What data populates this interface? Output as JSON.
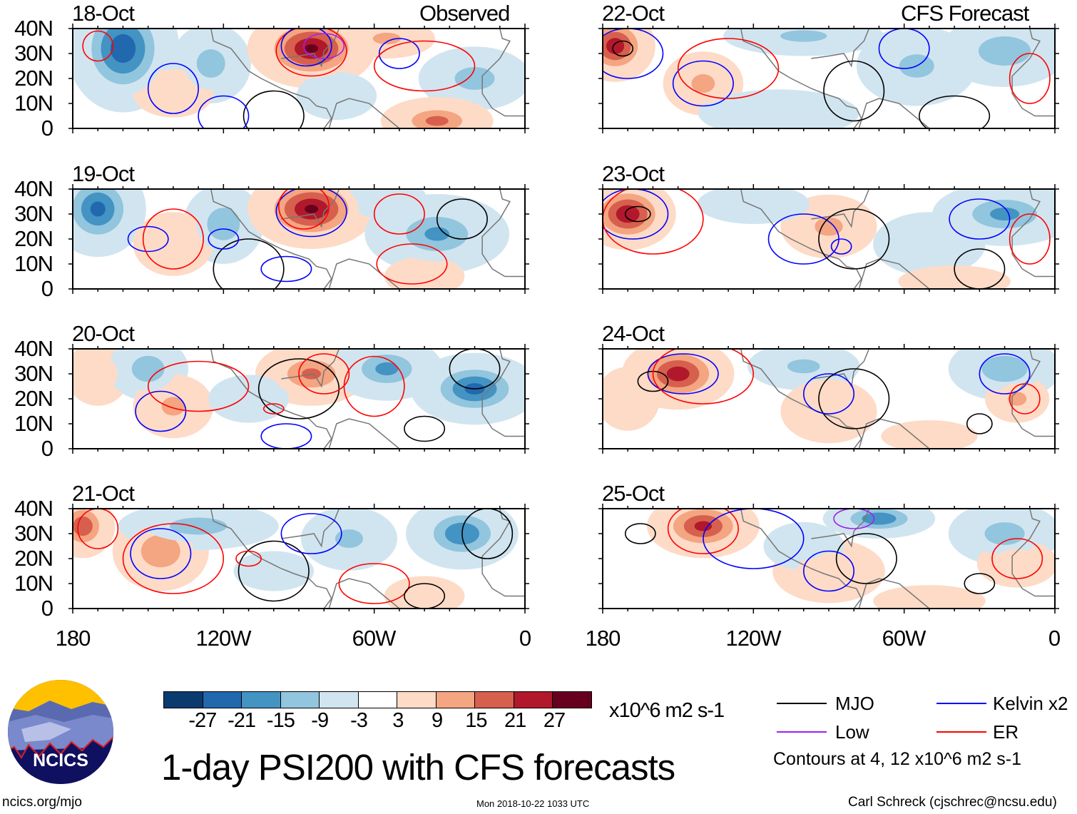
{
  "header": {
    "left_label": "Observed",
    "right_label": "CFS Forecast"
  },
  "title": "1-day PSI200 with CFS forecasts",
  "footer": {
    "url": "ncics.org/mjo",
    "timestamp": "Mon 2018-10-22 1033 UTC",
    "author": "Carl Schreck (cjschrec@ncsu.edu)"
  },
  "logo": {
    "text": "NCICS"
  },
  "colorbar": {
    "unit": "x10^6 m2 s-1",
    "labels": [
      "-27",
      "-21",
      "-15",
      "-9",
      "-3",
      "3",
      "9",
      "15",
      "21",
      "27"
    ],
    "colors": [
      "#0b3a6e",
      "#2268ae",
      "#4393c3",
      "#92c5de",
      "#d1e5f0",
      "#ffffff",
      "#fddbc7",
      "#f4a582",
      "#d6604d",
      "#b2182b",
      "#67001f"
    ]
  },
  "legend": {
    "items": [
      {
        "label": "MJO",
        "color": "#000000"
      },
      {
        "label": "Kelvin x2",
        "color": "#0000ff"
      },
      {
        "label": "Low",
        "color": "#a020f0"
      },
      {
        "label": "ER",
        "color": "#ff0000"
      }
    ],
    "note": "Contours at 4, 12 x10^6 m2 s-1"
  },
  "chart_data": {
    "type": "heatmap",
    "variable": "200-hPa streamfunction anomaly",
    "xlim": [
      -180,
      0
    ],
    "ylim": [
      0,
      40
    ],
    "xticks": [
      "180",
      "120W",
      "60W",
      "0"
    ],
    "yticks": [
      "40N",
      "30N",
      "20N",
      "10N",
      "0"
    ],
    "panels": [
      {
        "date": "18-Oct",
        "blobs": [
          [
            -160,
            32,
            14,
            16,
            -25
          ],
          [
            -125,
            26,
            10,
            10,
            -12
          ],
          [
            -85,
            32,
            16,
            10,
            27
          ],
          [
            -55,
            36,
            12,
            5,
            10
          ],
          [
            -20,
            20,
            14,
            8,
            -12
          ],
          [
            -35,
            3,
            14,
            6,
            16
          ],
          [
            -140,
            14,
            10,
            6,
            5
          ],
          [
            -75,
            13,
            10,
            6,
            -5
          ]
        ],
        "contours": [
          [
            -170,
            33,
            6,
            6,
            "ER"
          ],
          [
            -140,
            16,
            10,
            10,
            "Kelvin"
          ],
          [
            -85,
            31,
            14,
            10,
            "ER"
          ],
          [
            -87,
            33,
            10,
            8,
            "Kelvin"
          ],
          [
            -50,
            30,
            8,
            6,
            "Kelvin"
          ],
          [
            -100,
            5,
            12,
            10,
            "MJO"
          ],
          [
            -40,
            25,
            20,
            10,
            "ER"
          ],
          [
            -120,
            5,
            10,
            8,
            "Kelvin"
          ],
          [
            -80,
            33,
            8,
            5,
            "Low"
          ]
        ]
      },
      {
        "date": "22-Oct",
        "blobs": [
          [
            -175,
            33,
            10,
            9,
            25
          ],
          [
            -140,
            18,
            10,
            8,
            10
          ],
          [
            -100,
            37,
            20,
            5,
            -10
          ],
          [
            -55,
            25,
            15,
            10,
            -10
          ],
          [
            -20,
            31,
            16,
            9,
            -14
          ],
          [
            -110,
            6,
            20,
            6,
            -4
          ]
        ],
        "contours": [
          [
            -170,
            30,
            14,
            10,
            "Kelvin"
          ],
          [
            -172,
            32,
            4,
            3,
            "MJO"
          ],
          [
            -140,
            18,
            12,
            9,
            "Kelvin"
          ],
          [
            -80,
            15,
            12,
            12,
            "MJO"
          ],
          [
            -60,
            32,
            10,
            8,
            "Kelvin"
          ],
          [
            -10,
            20,
            8,
            10,
            "ER"
          ],
          [
            -130,
            24,
            20,
            12,
            "ER"
          ],
          [
            -40,
            5,
            14,
            8,
            "MJO"
          ]
        ]
      },
      {
        "date": "19-Oct",
        "blobs": [
          [
            -170,
            32,
            12,
            12,
            -22
          ],
          [
            -120,
            26,
            10,
            10,
            -14
          ],
          [
            -85,
            32,
            16,
            10,
            27
          ],
          [
            -140,
            18,
            10,
            8,
            6
          ],
          [
            -35,
            22,
            18,
            10,
            -15
          ],
          [
            -55,
            36,
            10,
            5,
            -8
          ],
          [
            -40,
            5,
            10,
            5,
            6
          ]
        ],
        "contours": [
          [
            -150,
            20,
            8,
            5,
            "Kelvin"
          ],
          [
            -140,
            20,
            12,
            12,
            "ER"
          ],
          [
            -85,
            31,
            14,
            10,
            "Kelvin"
          ],
          [
            -88,
            33,
            10,
            9,
            "ER"
          ],
          [
            -110,
            8,
            14,
            12,
            "MJO"
          ],
          [
            -95,
            8,
            10,
            5,
            "Kelvin"
          ],
          [
            -50,
            30,
            10,
            8,
            "ER"
          ],
          [
            -25,
            28,
            10,
            8,
            "MJO"
          ],
          [
            -45,
            10,
            14,
            8,
            "ER"
          ],
          [
            -120,
            20,
            6,
            4,
            "Kelvin"
          ]
        ]
      },
      {
        "date": "23-Oct",
        "blobs": [
          [
            -170,
            30,
            12,
            9,
            26
          ],
          [
            -90,
            25,
            12,
            8,
            10
          ],
          [
            -20,
            30,
            18,
            8,
            -16
          ],
          [
            -120,
            34,
            14,
            5,
            -8
          ],
          [
            -50,
            18,
            14,
            8,
            -6
          ],
          [
            -40,
            3,
            14,
            4,
            8
          ]
        ],
        "contours": [
          [
            -168,
            30,
            14,
            10,
            "Kelvin"
          ],
          [
            -166,
            30,
            5,
            3,
            "MJO"
          ],
          [
            -160,
            28,
            20,
            14,
            "ER"
          ],
          [
            -100,
            20,
            14,
            10,
            "Kelvin"
          ],
          [
            -80,
            20,
            14,
            12,
            "MJO"
          ],
          [
            -85,
            17,
            4,
            3,
            "Kelvin"
          ],
          [
            -30,
            28,
            12,
            8,
            "Kelvin"
          ],
          [
            -10,
            20,
            8,
            10,
            "ER"
          ],
          [
            -30,
            8,
            10,
            8,
            "MJO"
          ]
        ]
      },
      {
        "date": "20-Oct",
        "blobs": [
          [
            -170,
            30,
            8,
            8,
            8
          ],
          [
            -150,
            32,
            10,
            8,
            -14
          ],
          [
            -140,
            17,
            10,
            8,
            10
          ],
          [
            -85,
            30,
            14,
            8,
            15
          ],
          [
            -55,
            32,
            14,
            8,
            -16
          ],
          [
            -20,
            24,
            16,
            9,
            -22
          ],
          [
            -110,
            20,
            10,
            6,
            -5
          ]
        ],
        "contours": [
          [
            -145,
            15,
            10,
            8,
            "Kelvin"
          ],
          [
            -130,
            25,
            20,
            10,
            "ER"
          ],
          [
            -90,
            24,
            16,
            12,
            "MJO"
          ],
          [
            -80,
            30,
            10,
            8,
            "ER"
          ],
          [
            -95,
            5,
            10,
            5,
            "Kelvin"
          ],
          [
            -60,
            25,
            12,
            12,
            "ER"
          ],
          [
            -40,
            8,
            8,
            5,
            "MJO"
          ],
          [
            -20,
            32,
            10,
            8,
            "MJO"
          ],
          [
            -100,
            16,
            4,
            2,
            "ER"
          ]
        ]
      },
      {
        "date": "24-Oct",
        "blobs": [
          [
            -150,
            30,
            14,
            9,
            24
          ],
          [
            -170,
            20,
            8,
            8,
            5
          ],
          [
            -100,
            33,
            14,
            6,
            -10
          ],
          [
            -90,
            15,
            12,
            8,
            6
          ],
          [
            -20,
            32,
            14,
            8,
            -14
          ],
          [
            -15,
            20,
            8,
            6,
            10
          ],
          [
            -50,
            5,
            12,
            4,
            6
          ]
        ],
        "contours": [
          [
            -148,
            30,
            14,
            8,
            "Kelvin"
          ],
          [
            -160,
            27,
            6,
            4,
            "MJO"
          ],
          [
            -140,
            30,
            20,
            12,
            "ER"
          ],
          [
            -80,
            20,
            14,
            12,
            "MJO"
          ],
          [
            -90,
            22,
            10,
            8,
            "Kelvin"
          ],
          [
            -20,
            30,
            10,
            8,
            "Kelvin"
          ],
          [
            -12,
            20,
            6,
            6,
            "ER"
          ],
          [
            -30,
            10,
            5,
            4,
            "MJO"
          ]
        ]
      },
      {
        "date": "21-Oct",
        "blobs": [
          [
            -176,
            33,
            8,
            8,
            20
          ],
          [
            -145,
            23,
            12,
            10,
            14
          ],
          [
            -130,
            33,
            20,
            6,
            -12
          ],
          [
            -70,
            28,
            12,
            8,
            -10
          ],
          [
            -25,
            30,
            14,
            9,
            -20
          ],
          [
            -40,
            5,
            10,
            5,
            8
          ],
          [
            -100,
            15,
            10,
            5,
            -4
          ]
        ],
        "contours": [
          [
            -170,
            32,
            8,
            8,
            "ER"
          ],
          [
            -145,
            22,
            12,
            10,
            "Kelvin"
          ],
          [
            -140,
            20,
            20,
            14,
            "ER"
          ],
          [
            -100,
            15,
            14,
            12,
            "MJO"
          ],
          [
            -85,
            30,
            12,
            8,
            "Kelvin"
          ],
          [
            -60,
            10,
            14,
            8,
            "ER"
          ],
          [
            -40,
            5,
            8,
            5,
            "MJO"
          ],
          [
            -15,
            30,
            10,
            10,
            "MJO"
          ],
          [
            -110,
            20,
            5,
            3,
            "ER"
          ]
        ]
      },
      {
        "date": "25-Oct",
        "blobs": [
          [
            -140,
            33,
            14,
            8,
            22
          ],
          [
            -90,
            15,
            14,
            8,
            6
          ],
          [
            -70,
            36,
            14,
            5,
            -20
          ],
          [
            -20,
            30,
            14,
            8,
            -12
          ],
          [
            -15,
            18,
            10,
            6,
            8
          ],
          [
            -100,
            25,
            10,
            6,
            -6
          ],
          [
            -50,
            3,
            14,
            4,
            6
          ]
        ],
        "contours": [
          [
            -140,
            32,
            14,
            10,
            "ER"
          ],
          [
            -165,
            30,
            6,
            4,
            "MJO"
          ],
          [
            -120,
            28,
            20,
            12,
            "Kelvin"
          ],
          [
            -75,
            20,
            12,
            10,
            "MJO"
          ],
          [
            -90,
            15,
            10,
            8,
            "Kelvin"
          ],
          [
            -15,
            20,
            10,
            8,
            "ER"
          ],
          [
            -30,
            10,
            6,
            4,
            "MJO"
          ],
          [
            -80,
            36,
            8,
            4,
            "Low"
          ]
        ]
      }
    ]
  }
}
